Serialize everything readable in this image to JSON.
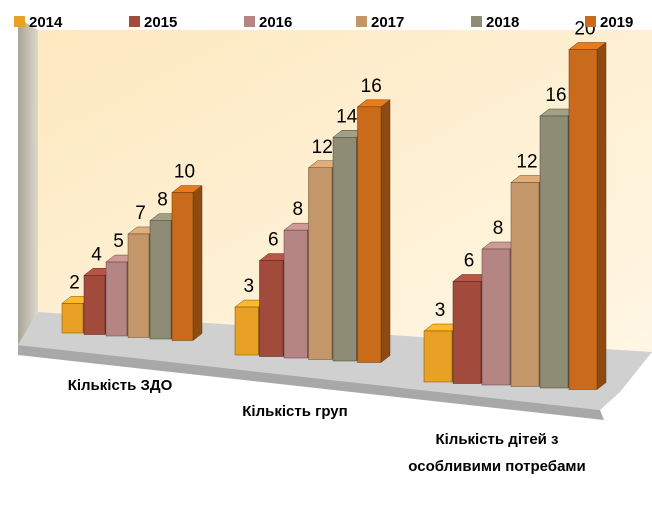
{
  "chart_data": {
    "type": "bar3d",
    "categories": [
      "Кількість ЗДО",
      "Кількість груп",
      "Кількість дітей з особливими потребами"
    ],
    "series": [
      {
        "name": "2014",
        "color": "#e8a124",
        "values": [
          2,
          3,
          3
        ]
      },
      {
        "name": "2015",
        "color": "#a24a3c",
        "values": [
          4,
          6,
          6
        ]
      },
      {
        "name": "2016",
        "color": "#b48582",
        "values": [
          5,
          8,
          8
        ]
      },
      {
        "name": "2017",
        "color": "#c4976a",
        "values": [
          7,
          12,
          12
        ]
      },
      {
        "name": "2018",
        "color": "#8e8c74",
        "values": [
          8,
          14,
          16
        ]
      },
      {
        "name": "2019",
        "color": "#c96b1a",
        "values": [
          10,
          16,
          20
        ]
      }
    ],
    "legend": "top"
  }
}
